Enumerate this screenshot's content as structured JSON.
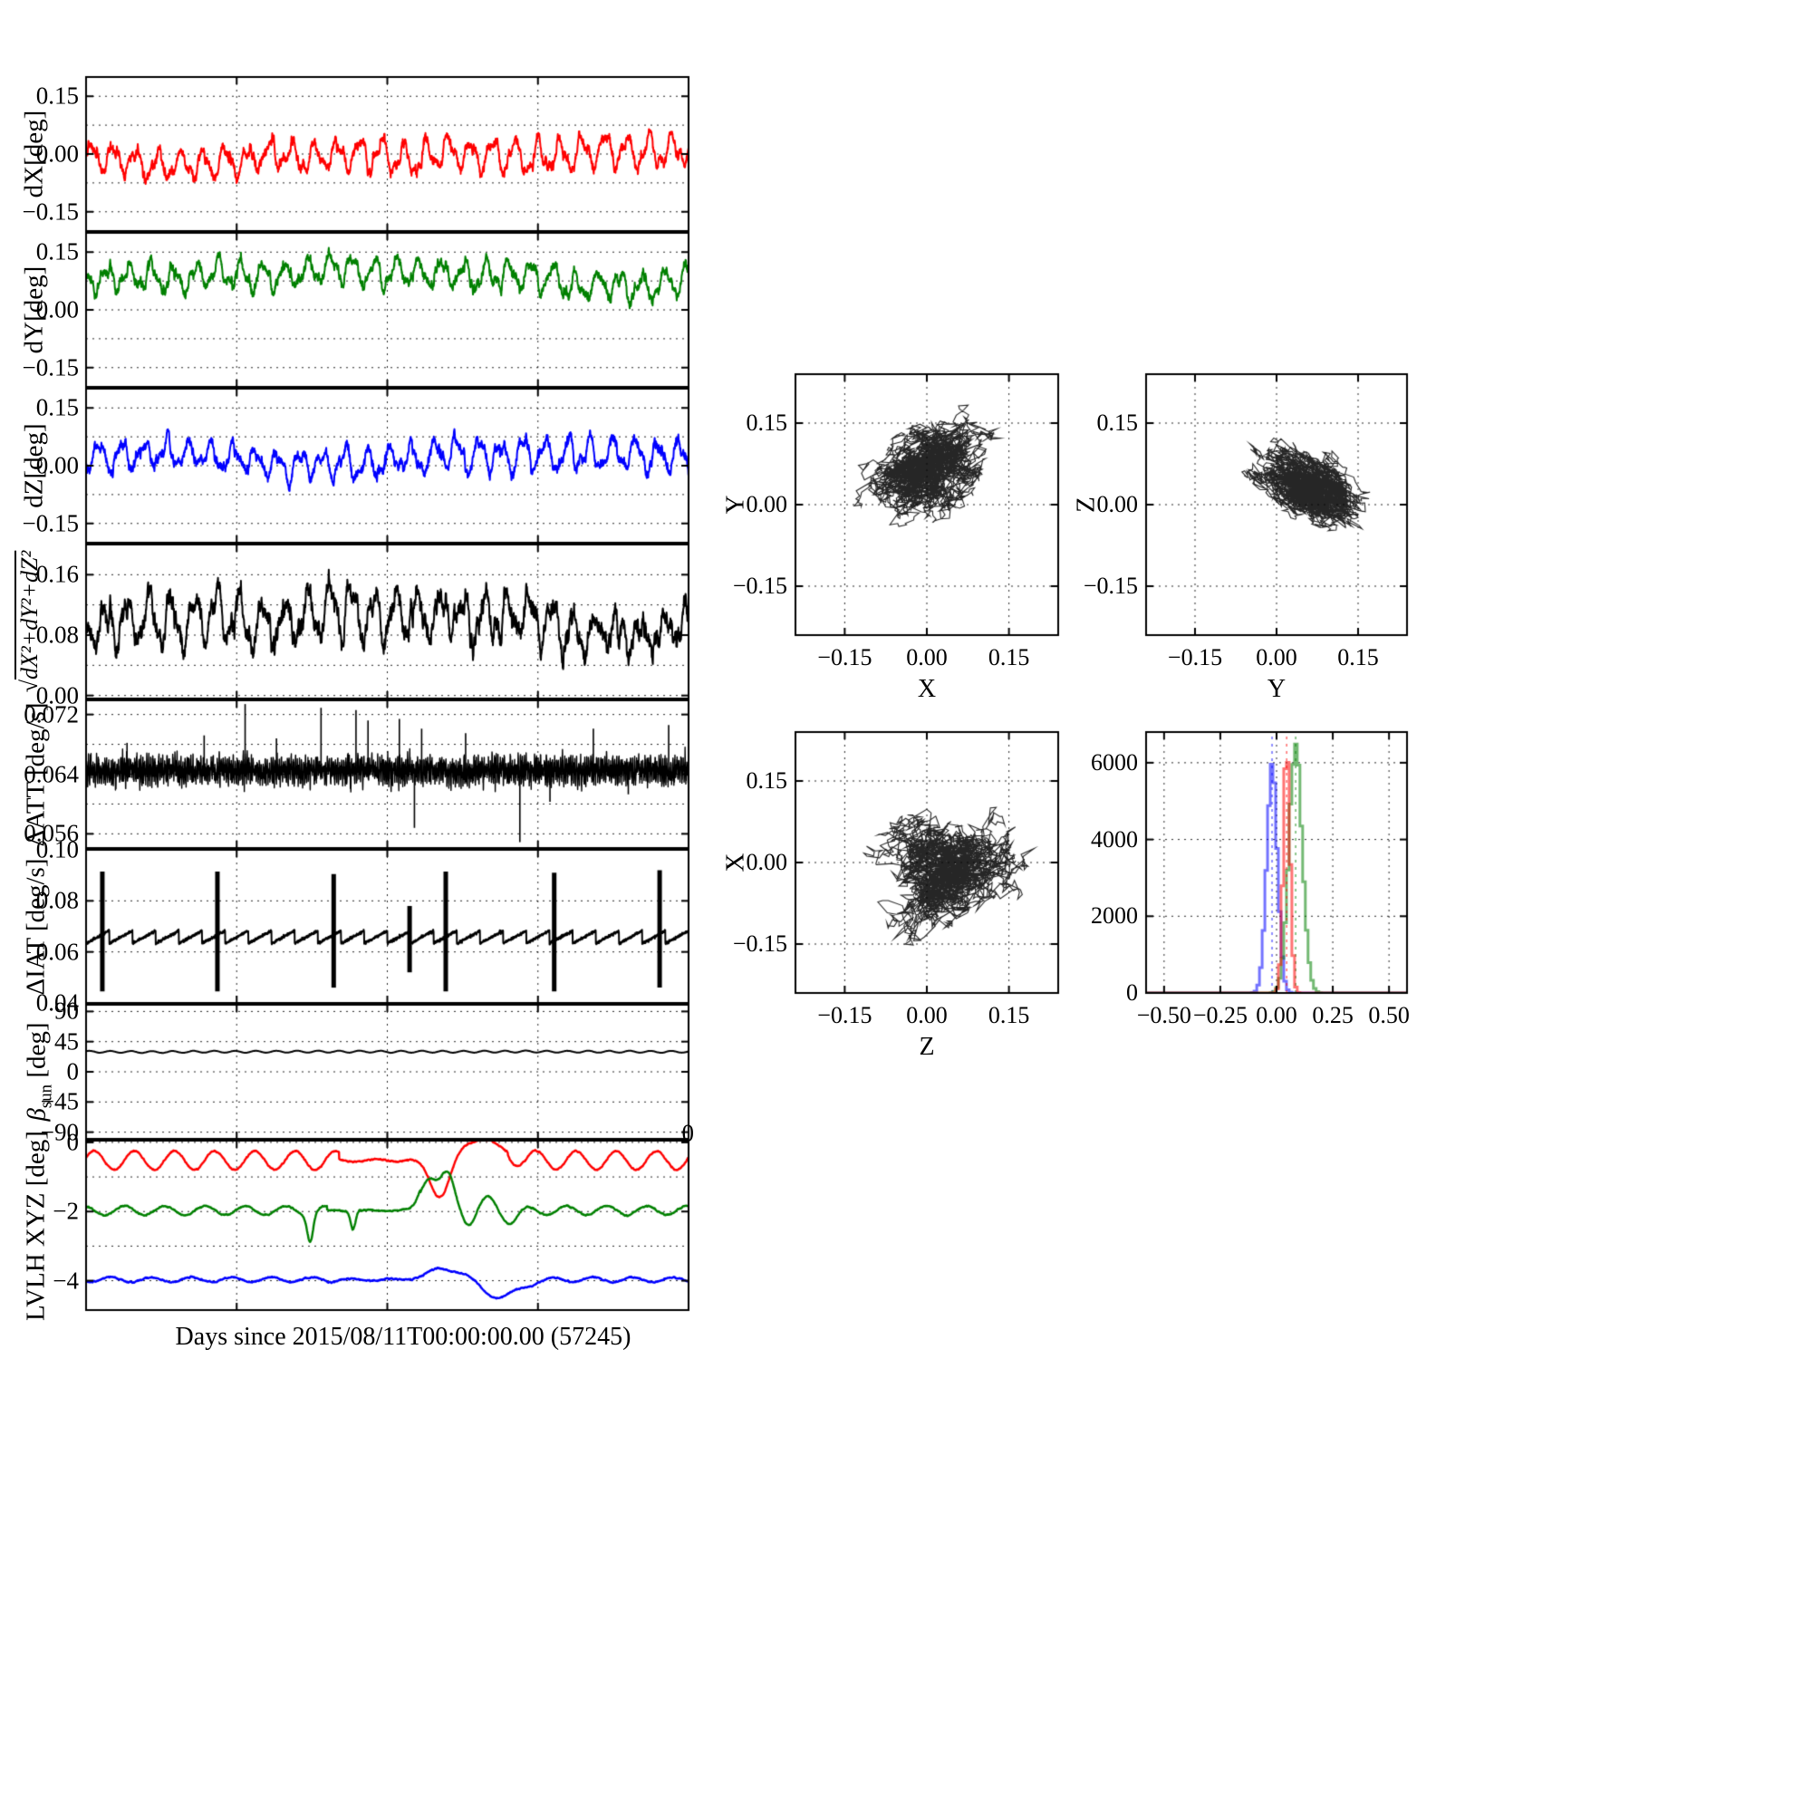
{
  "figure": {
    "background": "#ffffff"
  },
  "chart_data": {
    "type": "multi-panel-telemetry",
    "xlabel": "Days since 2015/08/11T00:00:00.00 (57245)",
    "x_axis": {
      "xlim": [
        0,
        1
      ],
      "xgrid": [
        0.25,
        0.5,
        0.75
      ],
      "xtick_labels": []
    },
    "stray_zero": "0",
    "panel_order": [
      "dX",
      "dY",
      "dZ",
      "mag",
      "dATT",
      "dIAT",
      "beta",
      "lvlh"
    ],
    "timeseries_panels": {
      "dX": {
        "ylabel": "dX[deg]",
        "color": "#ff0000",
        "ylim": [
          -0.2,
          0.2
        ],
        "yticks": [
          {
            "v": 0.15,
            "label": "0.15"
          },
          {
            "v": 0,
            "label": "0.00"
          },
          {
            "v": -0.15,
            "label": "−0.15"
          }
        ],
        "ygrid": [
          0.15,
          0.075,
          0,
          -0.075,
          -0.15
        ],
        "gen": {
          "kind": "osc",
          "mean": -0.008,
          "amp1": 0.028,
          "freq1": 27,
          "phase": 0,
          "amp2": 0.012,
          "freq2": 59,
          "noise": 0.009,
          "drift": 0.03,
          "grow": 0.35,
          "seed": 101
        }
      },
      "dY": {
        "ylabel": "dY[deg]",
        "color": "#008000",
        "ylim": [
          -0.2,
          0.2
        ],
        "yticks": [
          {
            "v": 0.15,
            "label": "0.15"
          },
          {
            "v": 0,
            "label": "0.00"
          },
          {
            "v": -0.15,
            "label": "−0.15"
          }
        ],
        "ygrid": [
          0.15,
          0.075,
          0,
          -0.075,
          -0.15
        ],
        "gen": {
          "kind": "osc",
          "mean": 0.075,
          "amp1": 0.028,
          "freq1": 27,
          "phase": 2.0,
          "amp2": 0.011,
          "freq2": 61,
          "noise": 0.009,
          "drift": 0.028,
          "grow": 0.15,
          "seed": 102
        }
      },
      "dZ": {
        "ylabel": "dZ[deg]",
        "color": "#0000ff",
        "ylim": [
          -0.2,
          0.2
        ],
        "yticks": [
          {
            "v": 0.15,
            "label": "0.15"
          },
          {
            "v": 0,
            "label": "0.00"
          },
          {
            "v": -0.15,
            "label": "−0.15"
          }
        ],
        "ygrid": [
          0.15,
          0.075,
          0,
          -0.075,
          -0.15
        ],
        "gen": {
          "kind": "osc",
          "mean": 0.02,
          "amp1": 0.03,
          "freq1": 27,
          "phase": 4.1,
          "amp2": 0.012,
          "freq2": 57,
          "noise": 0.009,
          "drift": 0.03,
          "grow": 0.2,
          "seed": 103
        }
      },
      "mag": {
        "ylabel_math": {
          "radical": "√",
          "radicand": "dX²+dY²+dZ²"
        },
        "color": "#000000",
        "ylim": [
          -0.004,
          0.2
        ],
        "yticks": [
          {
            "v": 0.16,
            "label": "0.16"
          },
          {
            "v": 0.08,
            "label": "0.08"
          },
          {
            "v": 0,
            "label": "0.00"
          }
        ],
        "ygrid": [
          0.16,
          0.12,
          0.08,
          0.04,
          0
        ],
        "computed": "magnitude"
      },
      "dATT": {
        "ylabel": "ΔATT [deg/s]",
        "color": "#000000",
        "ylim": [
          0.0541,
          0.0739
        ],
        "yticks": [
          {
            "v": 0.072,
            "label": "0.072"
          },
          {
            "v": 0.064,
            "label": "0.064"
          },
          {
            "v": 0.056,
            "label": "0.056"
          }
        ],
        "ygrid": [
          0.072,
          0.068,
          0.064,
          0.06,
          0.056
        ],
        "gen": {
          "kind": "dense",
          "mean": 0.0645,
          "amp": 0.0012,
          "freq": 300,
          "noise": 0.00055,
          "seed": 105
        },
        "spikes": [
          {
            "t": 0.068,
            "v": 0.0682
          },
          {
            "t": 0.196,
            "v": 0.0692
          },
          {
            "t": 0.264,
            "v": 0.0734
          },
          {
            "t": 0.316,
            "v": 0.0688
          },
          {
            "t": 0.39,
            "v": 0.0729
          },
          {
            "t": 0.448,
            "v": 0.0726
          },
          {
            "t": 0.468,
            "v": 0.0712
          },
          {
            "t": 0.52,
            "v": 0.0714
          },
          {
            "t": 0.545,
            "v": 0.0568
          },
          {
            "t": 0.557,
            "v": 0.0701
          },
          {
            "t": 0.63,
            "v": 0.0695
          },
          {
            "t": 0.72,
            "v": 0.0549
          },
          {
            "t": 0.77,
            "v": 0.0603
          },
          {
            "t": 0.842,
            "v": 0.0701
          },
          {
            "t": 0.9,
            "v": 0.0613
          },
          {
            "t": 0.967,
            "v": 0.0706
          }
        ]
      },
      "dIAT": {
        "ylabel": "ΔIAT [deg/s]",
        "color": "#000000",
        "ylim": [
          0.04,
          0.1
        ],
        "yticks": [
          {
            "v": 0.1,
            "label": "0.10"
          },
          {
            "v": 0.08,
            "label": "0.08"
          },
          {
            "v": 0.06,
            "label": "0.06"
          },
          {
            "v": 0.04,
            "label": "0.04"
          }
        ],
        "ygrid": [
          0.08,
          0.06
        ],
        "gen": {
          "kind": "saw",
          "base": 0.0633,
          "rise": 0.005,
          "freq": 26,
          "noise": 0.0005,
          "seed": 106
        },
        "bigspikes": [
          {
            "t": 0.027,
            "lo": 0.0445,
            "hi": 0.0915
          },
          {
            "t": 0.218,
            "lo": 0.0445,
            "hi": 0.0915
          },
          {
            "t": 0.411,
            "lo": 0.046,
            "hi": 0.0905
          },
          {
            "t": 0.537,
            "lo": 0.052,
            "hi": 0.078
          },
          {
            "t": 0.597,
            "lo": 0.0445,
            "hi": 0.0915
          },
          {
            "t": 0.777,
            "lo": 0.0445,
            "hi": 0.091
          },
          {
            "t": 0.952,
            "lo": 0.046,
            "hi": 0.092
          }
        ]
      },
      "beta": {
        "ylabel_parts": {
          "main": "β",
          "sub": "sun",
          "unit": " [deg]"
        },
        "color": "#000000",
        "ylim": [
          -100,
          100
        ],
        "yticks": [
          {
            "v": 90,
            "label": "90"
          },
          {
            "v": 45,
            "label": "45"
          },
          {
            "v": 0,
            "label": "0"
          },
          {
            "v": -45,
            "label": "−45"
          },
          {
            "v": -90,
            "label": "−90"
          }
        ],
        "ygrid": [
          90,
          45,
          0,
          -45,
          -90
        ],
        "gen": {
          "kind": "osc",
          "mean": 30,
          "amp1": 1.4,
          "freq1": 29,
          "phase": 0.5,
          "amp2": 0,
          "freq2": 0,
          "noise": 0.08,
          "drift": 0.5,
          "grow": 0,
          "seed": 107
        }
      },
      "lvlh": {
        "ylabel": "LVLH XYZ [deg]",
        "ylim": [
          -4.85,
          0.05
        ],
        "yticks": [
          {
            "v": 0,
            "label": "0"
          },
          {
            "v": -2,
            "label": "−2"
          },
          {
            "v": -4,
            "label": "−4"
          }
        ],
        "ygrid": [
          0,
          -1,
          -2,
          -3,
          -4
        ],
        "series": [
          {
            "name": "lvlh-x",
            "color": "#ff0000",
            "base": -0.52,
            "amp": 0.27,
            "freq": 15,
            "phase": 0.3,
            "flat": [
              0.42,
              0.7,
              0.15
            ],
            "bumps": [
              {
                "c": 0.588,
                "w": 0.016,
                "a": -1.1
              },
              {
                "c": 0.655,
                "w": 0.032,
                "a": 0.62
              }
            ]
          },
          {
            "name": "lvlh-y",
            "color": "#008000",
            "base": -1.97,
            "amp": 0.13,
            "freq": 15,
            "phase": 1.8,
            "flat": [
              0.4,
              0.555,
              0.12
            ],
            "bumps": [
              {
                "c": 0.372,
                "w": 0.005,
                "a": -0.8
              },
              {
                "c": 0.443,
                "w": 0.004,
                "a": -0.55
              },
              {
                "c": 0.568,
                "w": 0.013,
                "a": 1.0
              },
              {
                "c": 0.6,
                "w": 0.012,
                "a": 0.95
              },
              {
                "c": 0.636,
                "w": 0.01,
                "a": -0.32
              },
              {
                "c": 0.668,
                "w": 0.012,
                "a": 0.3
              },
              {
                "c": 0.705,
                "w": 0.012,
                "a": -0.28
              }
            ]
          },
          {
            "name": "lvlh-z",
            "color": "#0000ff",
            "base": -3.97,
            "amp": 0.07,
            "freq": 15,
            "phase": 4,
            "flat": [
              0.42,
              0.555,
              0.3
            ],
            "bumps": [
              {
                "c": 0.6,
                "w": 0.028,
                "a": 0.33
              },
              {
                "c": 0.688,
                "w": 0.03,
                "a": -0.5
              }
            ]
          }
        ]
      }
    },
    "scatter_order": [
      "Y-vs-X",
      "Z-vs-Y",
      "X-vs-Z"
    ],
    "scatter_panels": {
      "Y-vs-X": {
        "xlabel": "X",
        "ylabel": "Y",
        "xlim": [
          -0.24,
          0.24
        ],
        "ylim": [
          -0.24,
          0.24
        ],
        "xticks": [
          {
            "v": -0.15,
            "label": "−0.15"
          },
          {
            "v": 0,
            "label": "0.00"
          },
          {
            "v": 0.15,
            "label": "0.15"
          }
        ],
        "yticks": [
          {
            "v": 0.15,
            "label": "0.15"
          },
          {
            "v": 0,
            "label": "0.00"
          },
          {
            "v": -0.15,
            "label": "−0.15"
          }
        ],
        "grid": [
          -0.15,
          0,
          0.15
        ],
        "cluster": {
          "cx": -0.005,
          "cy": 0.07,
          "sx": 0.042,
          "sy": 0.036,
          "corr": 0.25,
          "n": 3000,
          "seed": 11
        }
      },
      "Z-vs-Y": {
        "xlabel": "Y",
        "ylabel": "Z",
        "xlim": [
          -0.24,
          0.24
        ],
        "ylim": [
          -0.24,
          0.24
        ],
        "xticks": [
          {
            "v": -0.15,
            "label": "−0.15"
          },
          {
            "v": 0,
            "label": "0.00"
          },
          {
            "v": 0.15,
            "label": "0.15"
          }
        ],
        "yticks": [
          {
            "v": 0.15,
            "label": "0.15"
          },
          {
            "v": 0,
            "label": "0.00"
          },
          {
            "v": -0.15,
            "label": "−0.15"
          }
        ],
        "grid": [
          -0.15,
          0,
          0.15
        ],
        "cluster": {
          "cx": 0.075,
          "cy": 0.03,
          "sx": 0.04,
          "sy": 0.034,
          "corr": -0.55,
          "n": 3000,
          "seed": 12
        }
      },
      "X-vs-Z": {
        "xlabel": "Z",
        "ylabel": "X",
        "xlim": [
          -0.24,
          0.24
        ],
        "ylim": [
          -0.24,
          0.24
        ],
        "xticks": [
          {
            "v": -0.15,
            "label": "−0.15"
          },
          {
            "v": 0,
            "label": "0.00"
          },
          {
            "v": 0.15,
            "label": "0.15"
          }
        ],
        "yticks": [
          {
            "v": 0.15,
            "label": "0.15"
          },
          {
            "v": 0,
            "label": "0.00"
          },
          {
            "v": -0.15,
            "label": "−0.15"
          }
        ],
        "grid": [
          -0.15,
          0,
          0.15
        ],
        "cluster": {
          "cx": 0.04,
          "cy": -0.012,
          "sx": 0.045,
          "sy": 0.04,
          "corr": 0.15,
          "n": 3000,
          "seed": 13
        }
      }
    },
    "histogram_panel": {
      "xlim": [
        -0.58,
        0.58
      ],
      "ylim": [
        0,
        6800
      ],
      "bin_width": 0.012,
      "xticks": [
        {
          "v": -0.5,
          "label": "−0.50"
        },
        {
          "v": -0.25,
          "label": "−0.25"
        },
        {
          "v": 0,
          "label": "0.00"
        },
        {
          "v": 0.25,
          "label": "0.25"
        },
        {
          "v": 0.5,
          "label": "0.50"
        }
      ],
      "yticks": [
        {
          "v": 0,
          "label": "0"
        },
        {
          "v": 2000,
          "label": "2000"
        },
        {
          "v": 4000,
          "label": "4000"
        },
        {
          "v": 6000,
          "label": "6000"
        }
      ],
      "xgrid": [
        -0.5,
        -0.25,
        0,
        0.25,
        0.5
      ],
      "ygrid": [
        2000,
        4000,
        6000
      ],
      "series": [
        {
          "name": "dZ-distribution",
          "color": "#0000ff",
          "alpha": 0.55,
          "mean": -0.02,
          "sigma": 0.024,
          "peak": 5800,
          "seed": 21
        },
        {
          "name": "dY-distribution",
          "color": "#008000",
          "alpha": 0.55,
          "mean": 0.085,
          "sigma": 0.03,
          "peak": 6400,
          "seed": 22
        },
        {
          "name": "dX-distribution",
          "color": "#ff0000",
          "alpha": 0.55,
          "mean": 0.045,
          "sigma": 0.015,
          "peak": 6450,
          "seed": 23
        }
      ]
    }
  }
}
